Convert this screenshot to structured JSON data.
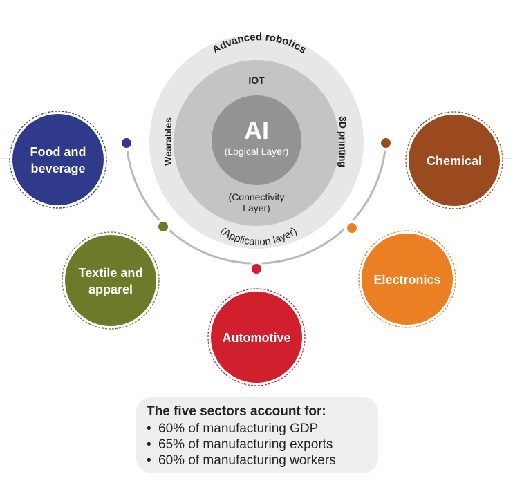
{
  "core": {
    "ai_label": "AI",
    "logical_layer": "(Logical Layer)",
    "connectivity_layer_line1": "(Connectivity",
    "connectivity_layer_line2": "Layer)",
    "iot": "IOT",
    "application_layer": "(Application layer)",
    "advanced_robotics": "Advanced robotics",
    "wearables": "Wearables",
    "printing_3d": "3D printing"
  },
  "sectors": [
    {
      "lines": [
        "Food and",
        "beverage"
      ],
      "color": "#2f3a8a"
    },
    {
      "lines": [
        "Textile and",
        "apparel"
      ],
      "color": "#6c7a2a"
    },
    {
      "lines": [
        "Automotive"
      ],
      "color": "#d0202e"
    },
    {
      "lines": [
        "Electronics"
      ],
      "color": "#ea7f23"
    },
    {
      "lines": [
        "Chemical"
      ],
      "color": "#9a4a1e"
    }
  ],
  "summary": {
    "heading": "The five sectors account for:",
    "bullet": "•",
    "items": [
      "60% of manufacturing GDP",
      "65% of manufacturing exports",
      "60% of manufacturing workers"
    ]
  },
  "colors": {
    "outer_ring": "#e7e7e7",
    "middle_ring": "#c4c4c4",
    "core": "#939393",
    "arc": "#b9b9b9"
  }
}
